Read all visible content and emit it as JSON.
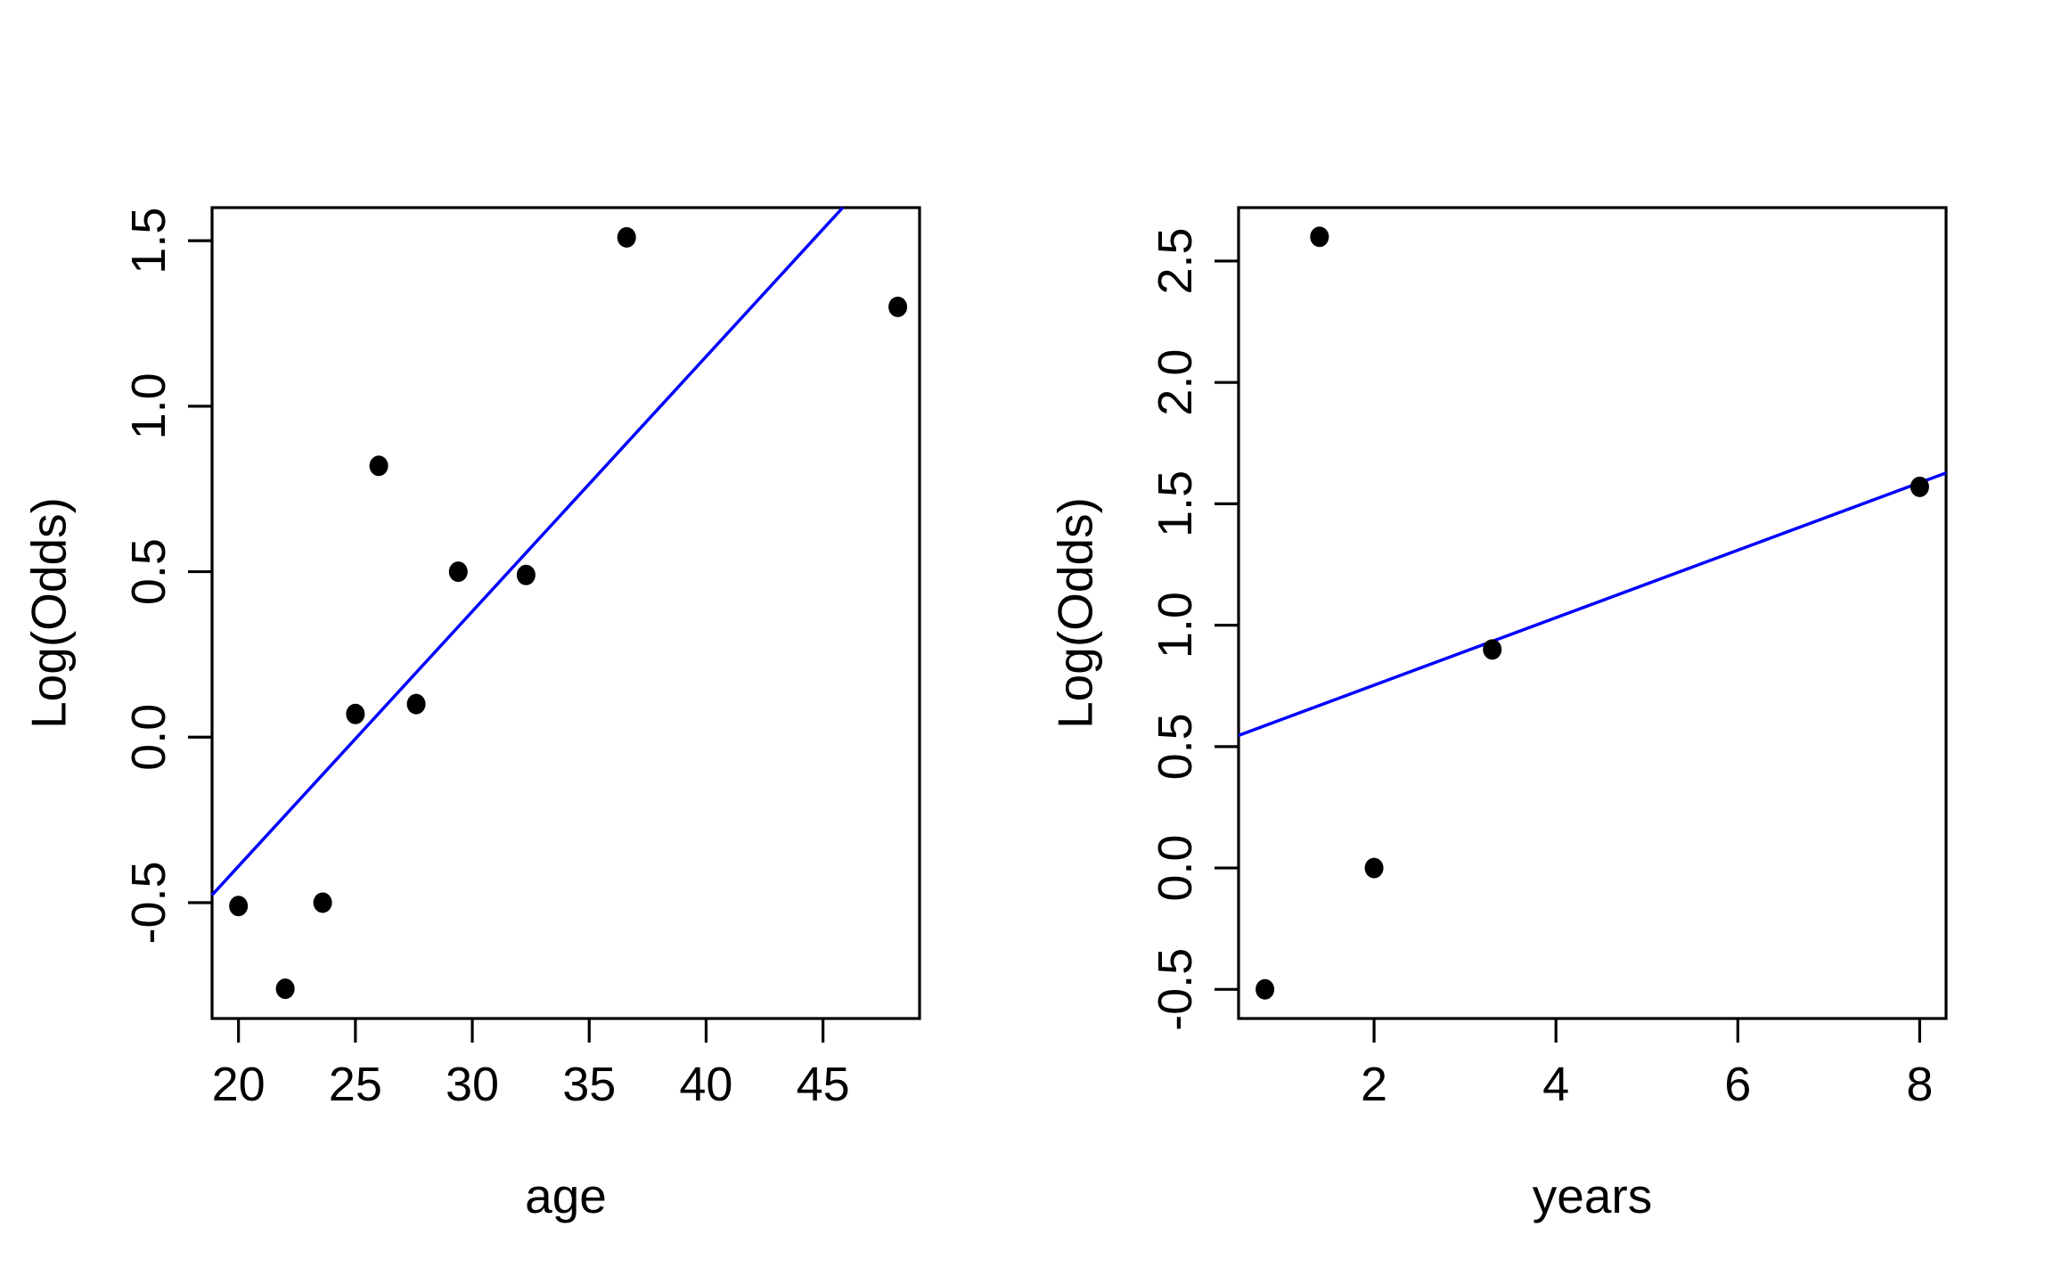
{
  "figure": {
    "background": "#ffffff",
    "text_color": "#000000",
    "panel_count": 2
  },
  "chart_data": [
    {
      "type": "scatter",
      "title": "",
      "xlabel": "age",
      "ylabel": "Log(Odds)",
      "x_ticks": [
        20,
        25,
        30,
        35,
        40,
        45
      ],
      "x_tick_labels": [
        "20",
        "25",
        "30",
        "35",
        "40",
        "45"
      ],
      "y_ticks": [
        -0.5,
        0.0,
        0.5,
        1.0,
        1.5
      ],
      "y_tick_labels": [
        "-0.5",
        "0.0",
        "0.5",
        "1.0",
        "1.5"
      ],
      "xlim": [
        18.87,
        49.13
      ],
      "ylim": [
        -0.85,
        1.6
      ],
      "grid": false,
      "legend": null,
      "point_color": "#000000",
      "points": [
        [
          20.0,
          -0.51
        ],
        [
          22.0,
          -0.76
        ],
        [
          23.6,
          -0.5
        ],
        [
          25.0,
          0.07
        ],
        [
          26.0,
          0.82
        ],
        [
          27.6,
          0.1
        ],
        [
          29.4,
          0.5
        ],
        [
          32.3,
          0.49
        ],
        [
          36.6,
          1.51
        ],
        [
          48.2,
          1.3
        ]
      ],
      "fit_line": {
        "slope": 0.077,
        "intercept": -1.93,
        "color": "#0000ff"
      }
    },
    {
      "type": "scatter",
      "title": "",
      "xlabel": "years",
      "ylabel": "Log(Odds)",
      "x_ticks": [
        2,
        4,
        6,
        8
      ],
      "x_tick_labels": [
        "2",
        "4",
        "6",
        "8"
      ],
      "y_ticks": [
        -0.5,
        0.0,
        0.5,
        1.0,
        1.5,
        2.0,
        2.5
      ],
      "y_tick_labels": [
        "-0.5",
        "0.0",
        "0.5",
        "1.0",
        "1.5",
        "2.0",
        "2.5"
      ],
      "xlim": [
        0.51,
        8.29
      ],
      "ylim": [
        -0.62,
        2.72
      ],
      "grid": false,
      "legend": null,
      "point_color": "#000000",
      "points": [
        [
          0.8,
          -0.5
        ],
        [
          1.4,
          2.6
        ],
        [
          2.0,
          0.0
        ],
        [
          3.3,
          0.9
        ],
        [
          8.0,
          1.57
        ]
      ],
      "fit_line": {
        "slope": 0.139,
        "intercept": 0.475,
        "color": "#0000ff"
      }
    }
  ]
}
